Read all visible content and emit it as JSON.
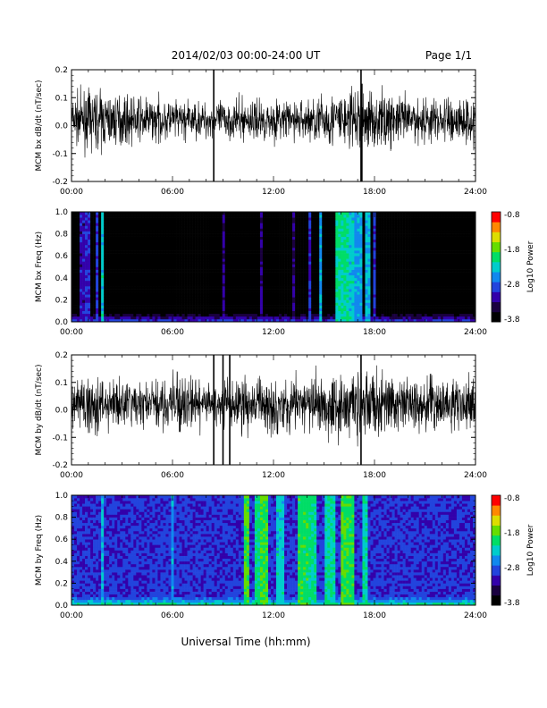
{
  "header": {
    "title": "2014/02/03  00:00-24:00 UT",
    "page": "Page 1/1"
  },
  "xaxis": {
    "label": "Universal Time (hh:mm)",
    "range_hours": [
      0,
      24
    ],
    "ticks": [
      "00:00",
      "06:00",
      "12:00",
      "18:00",
      "24:00"
    ]
  },
  "colors": {
    "trace": "#000000",
    "colormap": [
      "#000000",
      "#1a0040",
      "#3300aa",
      "#2244dd",
      "#1188ee",
      "#00cccc",
      "#00dd66",
      "#66dd00",
      "#dddd00",
      "#ff8800",
      "#ff0000"
    ]
  },
  "chart_data": [
    {
      "type": "line",
      "ylabel": "MCM bx dB/dt (nT/sec)",
      "ylim": [
        -0.2,
        0.2
      ],
      "yticks": [
        "0.2",
        "0.1",
        "0.0",
        "-0.1",
        "-0.2"
      ],
      "x_range_hours": [
        0,
        24
      ],
      "baseline": 0.02,
      "noise_envelope": [
        [
          0,
          0.04
        ],
        [
          1.5,
          0.05
        ],
        [
          3,
          0.04
        ],
        [
          6,
          0.035
        ],
        [
          8,
          0.03
        ],
        [
          10,
          0.035
        ],
        [
          12,
          0.035
        ],
        [
          14,
          0.035
        ],
        [
          15,
          0.045
        ],
        [
          16,
          0.05
        ],
        [
          17,
          0.055
        ],
        [
          18,
          0.05
        ],
        [
          20,
          0.04
        ],
        [
          22,
          0.04
        ],
        [
          24,
          0.045
        ]
      ],
      "spikes": [
        {
          "t": 8.45,
          "ymin": -0.2,
          "ymax": 0.2
        },
        {
          "t": 17.2,
          "ymin": -0.2,
          "ymax": 0.2
        },
        {
          "t": 17.25,
          "ymin": -0.2,
          "ymax": 0.15
        }
      ]
    },
    {
      "type": "heatmap",
      "ylabel": "MCM bx Freq (Hz)",
      "ylim": [
        0,
        1.0
      ],
      "yticks": [
        "1.0",
        "0.8",
        "0.6",
        "0.4",
        "0.2",
        "0.0"
      ],
      "x_range_hours": [
        0,
        24
      ],
      "colorbar": {
        "label": "Log10 Power",
        "min": -3.8,
        "max": -0.8,
        "ticks": [
          "-0.8",
          "-1.8",
          "-2.8",
          "-3.8"
        ]
      },
      "background_level": -3.7,
      "bursts": [
        {
          "t": 0.6,
          "w": 0.15,
          "level": -3.1
        },
        {
          "t": 0.9,
          "w": 0.15,
          "level": -3.0
        },
        {
          "t": 1.5,
          "w": 0.1,
          "level": -2.9
        },
        {
          "t": 1.85,
          "w": 0.08,
          "level": -2.3
        },
        {
          "t": 9.0,
          "w": 0.1,
          "level": -3.2
        },
        {
          "t": 11.3,
          "w": 0.1,
          "level": -3.2
        },
        {
          "t": 13.2,
          "w": 0.1,
          "level": -3.2
        },
        {
          "t": 14.2,
          "w": 0.1,
          "level": -3.0
        },
        {
          "t": 14.8,
          "w": 0.12,
          "level": -2.5
        },
        {
          "t": 16.1,
          "w": 0.4,
          "level": -2.1
        },
        {
          "t": 16.55,
          "w": 0.25,
          "level": -2.3
        },
        {
          "t": 17.0,
          "w": 0.2,
          "level": -2.5
        },
        {
          "t": 17.6,
          "w": 0.1,
          "level": -2.4
        },
        {
          "t": 18.0,
          "w": 0.15,
          "level": -2.9
        }
      ]
    },
    {
      "type": "line",
      "ylabel": "MCM by dB/dt (nT/sec)",
      "ylim": [
        -0.2,
        0.2
      ],
      "yticks": [
        "0.2",
        "0.1",
        "0.0",
        "-0.1",
        "-0.2"
      ],
      "x_range_hours": [
        0,
        24
      ],
      "baseline": 0.02,
      "noise_envelope": [
        [
          0,
          0.045
        ],
        [
          1.5,
          0.05
        ],
        [
          3,
          0.04
        ],
        [
          5,
          0.04
        ],
        [
          6.5,
          0.05
        ],
        [
          8,
          0.035
        ],
        [
          10,
          0.045
        ],
        [
          12,
          0.05
        ],
        [
          14,
          0.05
        ],
        [
          15,
          0.055
        ],
        [
          16,
          0.06
        ],
        [
          17,
          0.06
        ],
        [
          18,
          0.055
        ],
        [
          20,
          0.045
        ],
        [
          22,
          0.045
        ],
        [
          24,
          0.05
        ]
      ],
      "spikes": [
        {
          "t": 8.45,
          "ymin": -0.2,
          "ymax": 0.2
        },
        {
          "t": 9.0,
          "ymin": -0.2,
          "ymax": 0.2
        },
        {
          "t": 9.4,
          "ymin": -0.2,
          "ymax": 0.2
        },
        {
          "t": 17.2,
          "ymin": -0.2,
          "ymax": 0.2
        }
      ]
    },
    {
      "type": "heatmap",
      "ylabel": "MCM by Freq (Hz)",
      "ylim": [
        0,
        1.0
      ],
      "yticks": [
        "1.0",
        "0.8",
        "0.6",
        "0.4",
        "0.2",
        "0.0"
      ],
      "x_range_hours": [
        0,
        24
      ],
      "colorbar": {
        "label": "Log10 Power",
        "min": -3.8,
        "max": -0.8,
        "ticks": [
          "-0.8",
          "-1.8",
          "-2.8",
          "-3.8"
        ]
      },
      "background_level": -2.95,
      "bursts": [
        {
          "t": 1.8,
          "w": 0.08,
          "level": -2.4
        },
        {
          "t": 6.0,
          "w": 0.08,
          "level": -2.5
        },
        {
          "t": 10.4,
          "w": 0.2,
          "level": -1.9
        },
        {
          "t": 11.0,
          "w": 0.15,
          "level": -2.1
        },
        {
          "t": 11.4,
          "w": 0.2,
          "level": -1.9
        },
        {
          "t": 12.4,
          "w": 0.2,
          "level": -2.3
        },
        {
          "t": 13.8,
          "w": 0.3,
          "level": -2.0
        },
        {
          "t": 14.3,
          "w": 0.3,
          "level": -2.1
        },
        {
          "t": 15.4,
          "w": 0.3,
          "level": -2.2
        },
        {
          "t": 16.3,
          "w": 0.25,
          "level": -1.9
        },
        {
          "t": 16.6,
          "w": 0.15,
          "level": -2.0
        },
        {
          "t": 17.5,
          "w": 0.15,
          "level": -2.2
        }
      ]
    }
  ]
}
